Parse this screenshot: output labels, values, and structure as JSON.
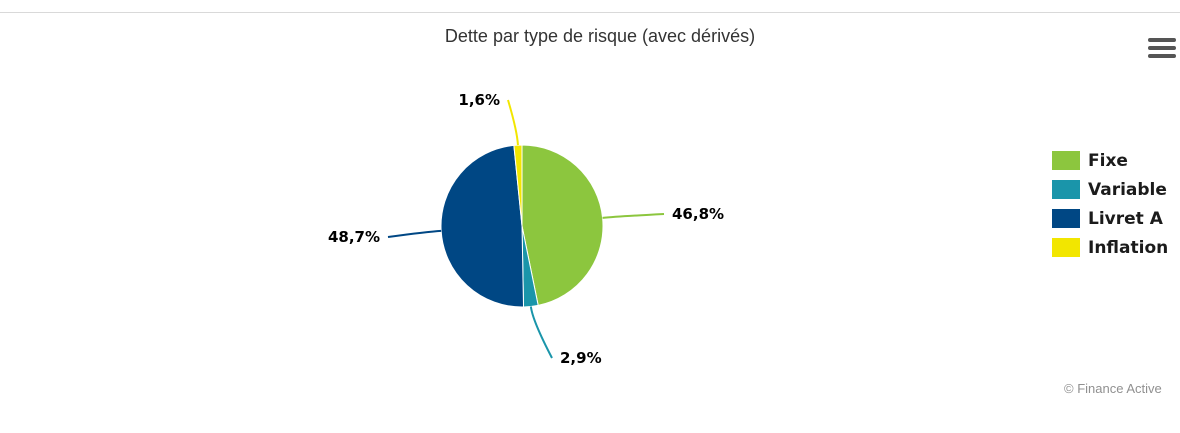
{
  "chart_data": {
    "type": "pie",
    "title": "Dette par type de risque (avec dérivés)",
    "categories": [
      "Fixe",
      "Variable",
      "Livret A",
      "Inflation"
    ],
    "values": [
      46.8,
      2.9,
      48.7,
      1.6
    ],
    "value_labels": [
      "46,8%",
      "2,9%",
      "48,7%",
      "1,6%"
    ],
    "colors": [
      "#8CC63E",
      "#1A95AA",
      "#004784",
      "#F2E600"
    ],
    "legend": {
      "position": "right",
      "items": [
        {
          "label": "Fixe",
          "color": "#8CC63E"
        },
        {
          "label": "Variable",
          "color": "#1A95AA"
        },
        {
          "label": "Livret A",
          "color": "#004784"
        },
        {
          "label": "Inflation",
          "color": "#F2E600"
        }
      ]
    }
  },
  "credits": "© Finance Active",
  "menu_icon": "hamburger-menu-icon"
}
